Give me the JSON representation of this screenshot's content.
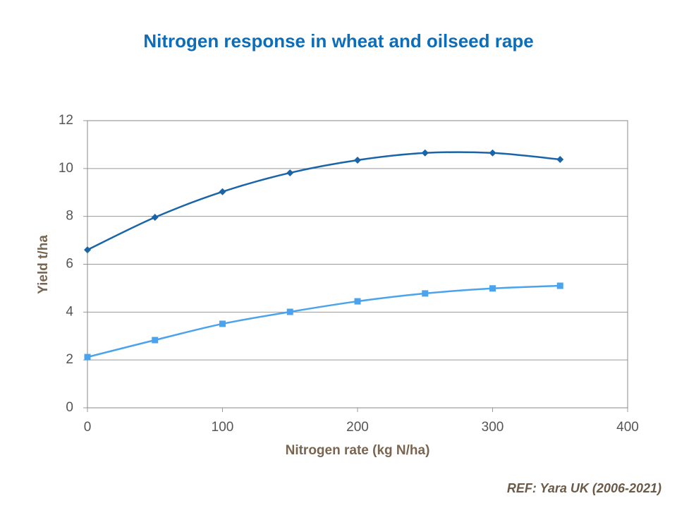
{
  "chart_data": {
    "type": "line",
    "title": "Nitrogen response in wheat and oilseed rape",
    "x_label": "Nitrogen rate (kg N/ha)",
    "y_label": "Yield t/ha",
    "source": "REF: Yara UK (2006-2021)",
    "x": [
      0,
      50,
      100,
      150,
      200,
      250,
      300,
      350
    ],
    "series": [
      {
        "color": "#1a64a8",
        "marker": "diamond",
        "values": [
          6.6,
          7.96,
          9.03,
          9.82,
          10.35,
          10.65,
          10.65,
          10.38
        ]
      },
      {
        "color": "#4aa3ec",
        "marker": "square",
        "values": [
          2.12,
          2.83,
          3.51,
          4.01,
          4.45,
          4.78,
          4.99,
          5.1
        ]
      }
    ],
    "xlim": [
      0,
      400
    ],
    "xticks": [
      0,
      100,
      200,
      300,
      400
    ],
    "ylim": [
      0,
      12
    ],
    "yticks": [
      0,
      2,
      4,
      6,
      8,
      10,
      12
    ],
    "grid": true,
    "smooth": true
  }
}
